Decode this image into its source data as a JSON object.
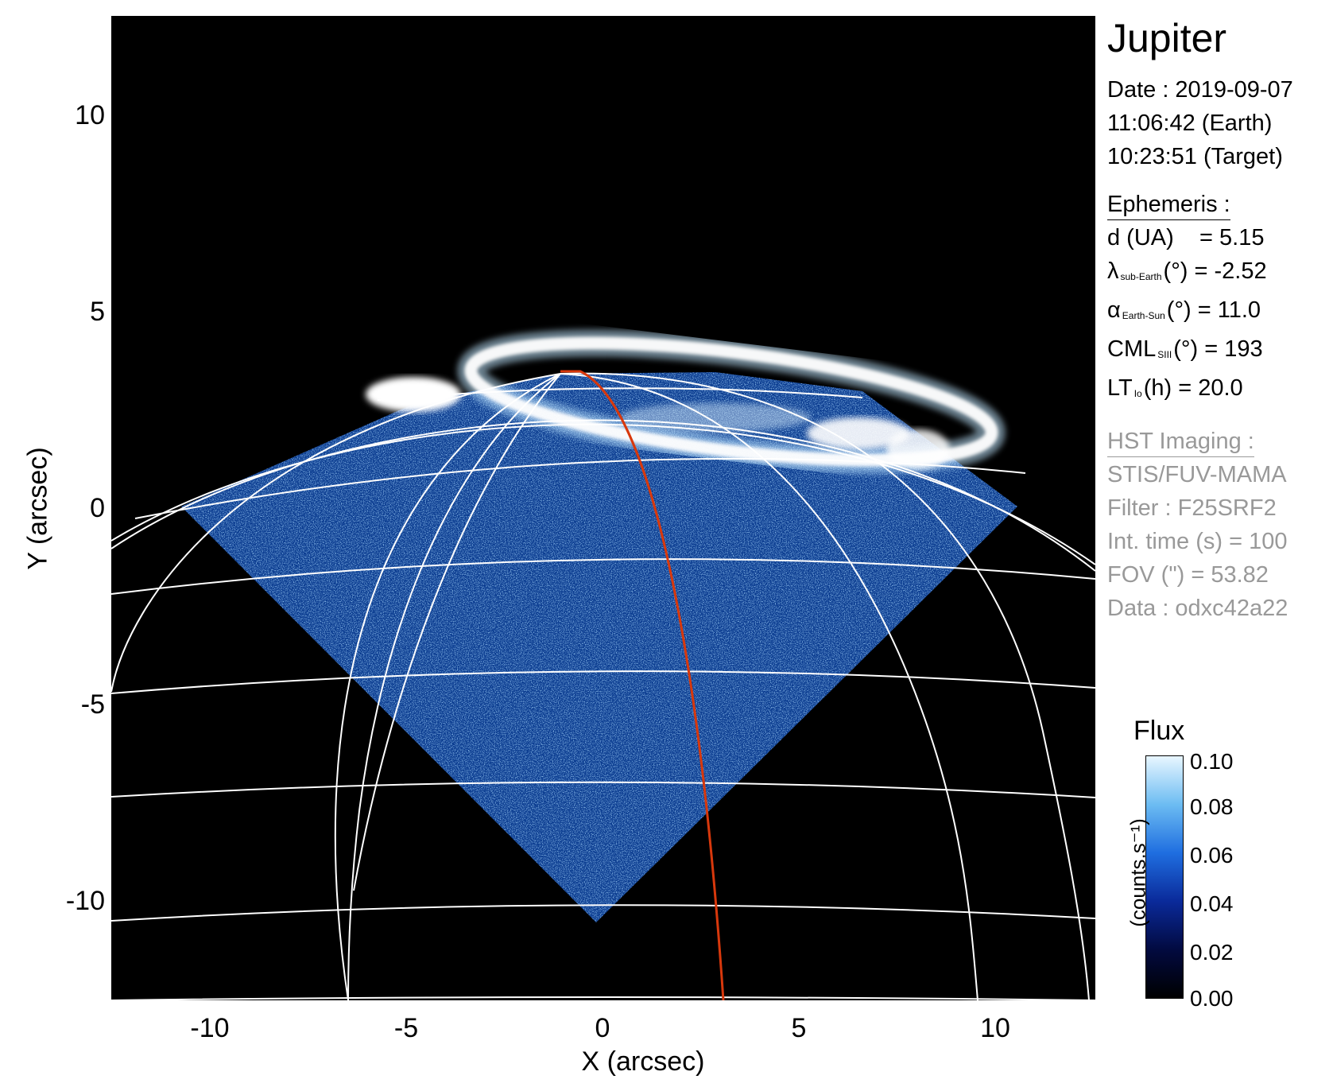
{
  "title": "Jupiter",
  "observation": {
    "date": "Date : 2019-09-07",
    "time_earth": "11:06:42 (Earth)",
    "time_target": "10:23:51 (Target)"
  },
  "ephemeris": {
    "header": "Ephemeris :",
    "distance": "d (UA)    = 5.15",
    "lambda_symbol": "λ",
    "lambda_sub": "sub-Earth",
    "lambda_rest": "(°) = -2.52",
    "alpha_symbol": "α",
    "alpha_sub": "Earth-Sun",
    "alpha_rest": "(°) = 11.0",
    "cml_symbol": "CML",
    "cml_sub": "SIII",
    "cml_rest": "(°) = 193",
    "lt_symbol": "LT",
    "lt_sub": "Io",
    "lt_rest": "(h) = 20.0"
  },
  "imaging": {
    "header": "HST Imaging :",
    "instrument": "STIS/FUV-MAMA",
    "filter": "Filter : F25SRF2",
    "int_time": "Int. time (s) = 100",
    "fov": "FOV (\") = 53.82",
    "data": "Data : odxc42a22"
  },
  "axes": {
    "x_label": "X (arcsec)",
    "y_label": "Y (arcsec)",
    "x_ticks": [
      "-10",
      "-5",
      "0",
      "5",
      "10"
    ],
    "y_ticks": [
      "10",
      "5",
      "0",
      "-5",
      "-10"
    ]
  },
  "colorbar": {
    "title": "Flux",
    "unit": "(counts.s⁻¹)",
    "ticks": [
      "0.10",
      "0.08",
      "0.06",
      "0.04",
      "0.02",
      "0.00"
    ]
  },
  "colors": {
    "background": "#000000",
    "grid": "#ffffff",
    "meridian": "#d8380c",
    "emission": "#2f7be6"
  }
}
